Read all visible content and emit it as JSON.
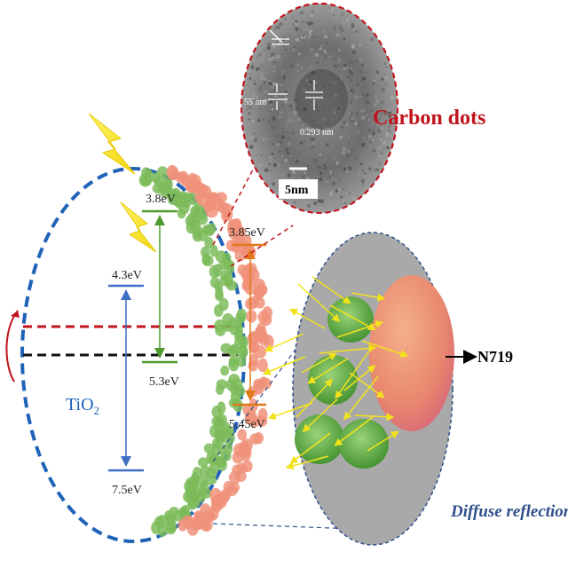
{
  "levels": {
    "tio2_cb": "4.3eV",
    "tio2_vb": "7.5eV",
    "cd_lumo": "3.8eV",
    "cd_homo": "5.3eV",
    "dye_lumo": "3.85eV",
    "dye_homo": "5.45eV"
  },
  "material": {
    "base": "TiO",
    "sub": "2"
  },
  "tem": {
    "scale_label": "5nm",
    "spacing_left": "55 nm",
    "spacing_right": "0.293 nm"
  },
  "titles": {
    "carbon_dots": "Carbon dots",
    "diffuse_reflection": "Diffuse reflection",
    "dye": "N719"
  },
  "colors": {
    "tio2_outline": "#1f63b8",
    "carbon_title": "#c0141c",
    "cd_dot": "#7dbb5a",
    "dye_dot": "#f0927a",
    "arrow_green": "#4e9a2e",
    "arrow_orange": "#e07a18",
    "arrow_blue": "#3d6fc4",
    "diffuse_text": "#2e4f8c",
    "ray": "#f2e21b"
  }
}
